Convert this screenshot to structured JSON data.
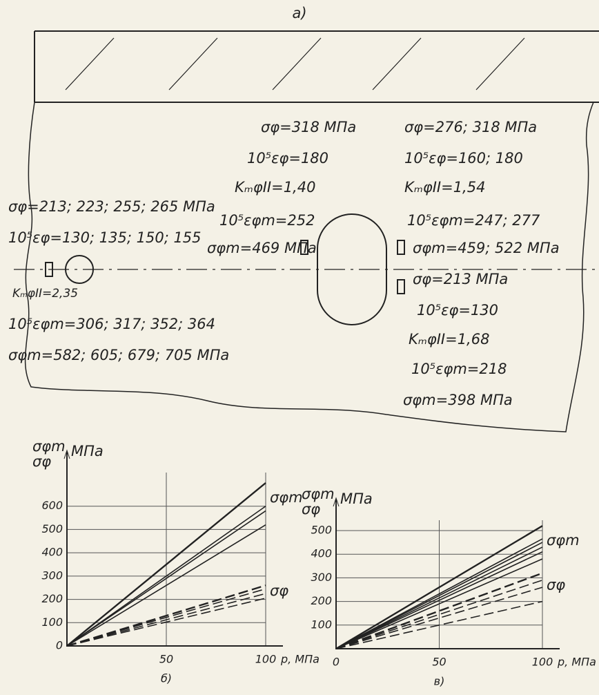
{
  "diagram": {
    "title": "а)",
    "left": [
      "σφ=213; 223; 255; 265 МПа",
      "10⁵εφ=130; 135; 150; 155",
      "KₘφII=2,35",
      "10⁵εφm=306; 317; 352; 364",
      "σφm=582; 605; 679; 705 МПа"
    ],
    "center": [
      "σφ=318 МПа",
      "10⁵εφ=180",
      "KₘφII=1,40",
      "10⁵εφm=252",
      "σφm=469 МПа"
    ],
    "right_top": [
      "σφ=276; 318 МПа",
      "10⁵εφ=160; 180",
      "KₘφII=1,54",
      "10⁵εφm=247; 277",
      "σφm=459; 522 МПа"
    ],
    "right_bottom": [
      "σφ=213 МПа",
      "10⁵εφ=130",
      "KₘφII=1,68",
      "10⁵εφm=218",
      "σφm=398 МПа"
    ]
  },
  "chart_data": [
    {
      "type": "line",
      "caption": "б)",
      "y_label": [
        "σφm",
        "σφ"
      ],
      "y_unit": "МПа",
      "x_label": "p, МПа",
      "x": [
        0,
        100
      ],
      "xlim": [
        0,
        100
      ],
      "ylim": [
        0,
        700
      ],
      "xticks": [
        50,
        100
      ],
      "yticks": [
        0,
        100,
        200,
        300,
        400,
        500,
        600
      ],
      "grid": true,
      "color": "#222",
      "series": [
        {
          "name": "σφm",
          "style": "solid",
          "lines": [
            [
              0,
              700
            ],
            [
              0,
              600
            ],
            [
              0,
              580
            ],
            [
              0,
              520
            ]
          ]
        },
        {
          "name": "σφ",
          "style": "dashed",
          "lines": [
            [
              0,
              260
            ],
            [
              0,
              245
            ],
            [
              0,
              225
            ],
            [
              0,
              205
            ]
          ]
        }
      ]
    },
    {
      "type": "line",
      "caption": "в)",
      "y_label": [
        "σφm",
        "σφ"
      ],
      "y_unit": "МПа",
      "x_label": "p, МПа",
      "x": [
        0,
        100
      ],
      "xlim": [
        0,
        100
      ],
      "ylim": [
        0,
        500
      ],
      "xticks": [
        0,
        50,
        100
      ],
      "yticks": [
        100,
        200,
        300,
        400,
        500
      ],
      "grid": true,
      "color": "#222",
      "series": [
        {
          "name": "σφm",
          "style": "solid",
          "lines": [
            [
              0,
              520
            ],
            [
              0,
              465
            ],
            [
              0,
              450
            ],
            [
              0,
              430
            ],
            [
              0,
              410
            ],
            [
              0,
              380
            ]
          ]
        },
        {
          "name": "σφ",
          "style": "dashed",
          "lines": [
            [
              0,
              320
            ],
            [
              0,
              290
            ],
            [
              0,
              260
            ],
            [
              0,
              200
            ]
          ]
        }
      ]
    }
  ]
}
